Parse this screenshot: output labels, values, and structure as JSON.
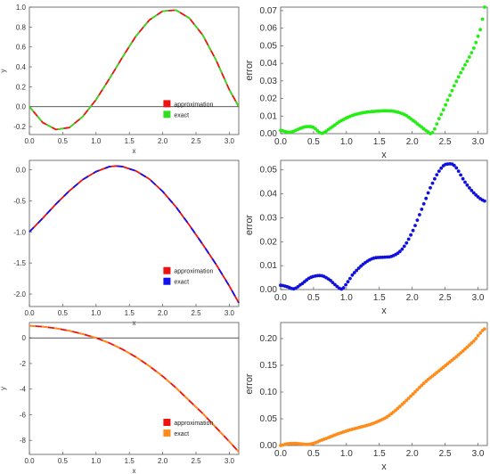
{
  "chart_data": [
    {
      "type": "line",
      "xlabel": "x",
      "ylabel": "y",
      "xlim": [
        0,
        3.14159
      ],
      "ylim": [
        -0.28,
        1.0
      ],
      "xticks": [
        0.0,
        0.5,
        1.0,
        1.5,
        2.0,
        2.5,
        3.0
      ],
      "xtick_labels": [
        "0.0",
        "0.5",
        "1.0",
        "1.5",
        "2.0",
        "2.5",
        "3.0"
      ],
      "yticks": [
        -0.2,
        0.0,
        0.2,
        0.4,
        0.6,
        0.8,
        1.0
      ],
      "ytick_labels": [
        "-0.2",
        "0.0",
        "0.2",
        "0.4",
        "0.6",
        "0.8",
        "1.0"
      ],
      "zero_line": true,
      "legend_position": "lower-right",
      "series": [
        {
          "name": "approximation",
          "color": "#ee1111",
          "style": "solid",
          "x": [
            0,
            0.2,
            0.4,
            0.6,
            0.8,
            1.0,
            1.2,
            1.4,
            1.6,
            1.8,
            2.0,
            2.2,
            2.4,
            2.6,
            2.8,
            3.0,
            3.14159
          ],
          "y": [
            0,
            -0.16,
            -0.23,
            -0.21,
            -0.1,
            0.07,
            0.28,
            0.5,
            0.71,
            0.87,
            0.96,
            0.97,
            0.89,
            0.72,
            0.47,
            0.17,
            0.0
          ]
        },
        {
          "name": "exact",
          "color": "#33dd22",
          "style": "dashed",
          "x": [
            0,
            0.2,
            0.4,
            0.6,
            0.8,
            1.0,
            1.2,
            1.4,
            1.6,
            1.8,
            2.0,
            2.2,
            2.4,
            2.6,
            2.8,
            3.0,
            3.14159
          ],
          "y": [
            0,
            -0.16,
            -0.23,
            -0.21,
            -0.1,
            0.07,
            0.28,
            0.5,
            0.71,
            0.87,
            0.96,
            0.97,
            0.89,
            0.72,
            0.47,
            0.17,
            0.0
          ]
        }
      ]
    },
    {
      "type": "scatter",
      "xlabel": "x",
      "ylabel": "error",
      "xlim": [
        0,
        3.14159
      ],
      "ylim": [
        0,
        0.072
      ],
      "xticks": [
        0.0,
        0.5,
        1.0,
        1.5,
        2.0,
        2.5,
        3.0
      ],
      "xtick_labels": [
        "0.0",
        "0.5",
        "1.0",
        "1.5",
        "2.0",
        "2.5",
        "3.0"
      ],
      "yticks": [
        0.0,
        0.01,
        0.02,
        0.03,
        0.04,
        0.05,
        0.06,
        0.07
      ],
      "ytick_labels": [
        "0.00",
        "0.01",
        "0.02",
        "0.03",
        "0.04",
        "0.05",
        "0.06",
        "0.07"
      ],
      "color": "#22ee11",
      "curve": {
        "x": [
          0.0,
          0.15,
          0.3,
          0.4,
          0.5,
          0.62,
          0.75,
          0.9,
          1.1,
          1.3,
          1.5,
          1.6,
          1.75,
          1.9,
          2.05,
          2.15,
          2.25,
          2.3,
          2.4,
          2.55,
          2.7,
          2.85,
          2.95,
          3.05,
          3.1
        ],
        "y": [
          0.0018,
          0.0008,
          0.003,
          0.004,
          0.0035,
          0.0002,
          0.003,
          0.007,
          0.0105,
          0.0122,
          0.0128,
          0.013,
          0.0125,
          0.0105,
          0.0065,
          0.0035,
          0.0008,
          0.0002,
          0.008,
          0.02,
          0.032,
          0.042,
          0.05,
          0.061,
          0.072
        ]
      }
    },
    {
      "type": "line",
      "xlabel": "x",
      "ylabel": "",
      "xlim": [
        0,
        3.14159
      ],
      "ylim": [
        -2.2,
        0.15
      ],
      "xticks": [
        0.0,
        0.5,
        1.0,
        1.5,
        2.0,
        2.5,
        3.0
      ],
      "xtick_labels": [
        "0.0",
        "0.5",
        "1.0",
        "1.5",
        "2.0",
        "2.5",
        "3.0"
      ],
      "yticks": [
        -2.0,
        -1.5,
        -1.0,
        -0.5,
        0.0
      ],
      "ytick_labels": [
        "-2.0",
        "-1.5",
        "-1.0",
        "-0.5",
        "0.0"
      ],
      "zero_line": false,
      "legend_position": "lower-right",
      "series": [
        {
          "name": "approximation",
          "color": "#ee1111",
          "style": "solid",
          "x": [
            0,
            0.2,
            0.4,
            0.6,
            0.8,
            1.0,
            1.2,
            1.3,
            1.4,
            1.6,
            1.8,
            2.0,
            2.2,
            2.4,
            2.6,
            2.8,
            3.0,
            3.14159
          ],
          "y": [
            -1.0,
            -0.78,
            -0.55,
            -0.34,
            -0.16,
            -0.03,
            0.05,
            0.06,
            0.05,
            -0.02,
            -0.15,
            -0.35,
            -0.6,
            -0.89,
            -1.2,
            -1.52,
            -1.87,
            -2.14
          ]
        },
        {
          "name": "exact",
          "color": "#1111ee",
          "style": "dashed",
          "x": [
            0,
            0.2,
            0.4,
            0.6,
            0.8,
            1.0,
            1.2,
            1.3,
            1.4,
            1.6,
            1.8,
            2.0,
            2.2,
            2.4,
            2.6,
            2.8,
            3.0,
            3.14159
          ],
          "y": [
            -1.0,
            -0.78,
            -0.55,
            -0.34,
            -0.16,
            -0.03,
            0.05,
            0.06,
            0.05,
            -0.02,
            -0.15,
            -0.35,
            -0.6,
            -0.89,
            -1.2,
            -1.52,
            -1.87,
            -2.14
          ]
        }
      ]
    },
    {
      "type": "scatter",
      "xlabel": "x",
      "ylabel": "error",
      "xlim": [
        0,
        3.14159
      ],
      "ylim": [
        0,
        0.054
      ],
      "xticks": [
        0.0,
        0.5,
        1.0,
        1.5,
        2.0,
        2.5,
        3.0
      ],
      "xtick_labels": [
        "0.0",
        "0.5",
        "1.0",
        "1.5",
        "2.0",
        "2.5",
        "3.0"
      ],
      "yticks": [
        0.0,
        0.01,
        0.02,
        0.03,
        0.04,
        0.05
      ],
      "ytick_labels": [
        "0.00",
        "0.01",
        "0.02",
        "0.03",
        "0.04",
        "0.05"
      ],
      "color": "#1111dd",
      "curve": {
        "x": [
          0.0,
          0.1,
          0.2,
          0.3,
          0.45,
          0.62,
          0.75,
          0.85,
          0.93,
          1.0,
          1.1,
          1.25,
          1.4,
          1.55,
          1.7,
          1.85,
          2.0,
          2.15,
          2.3,
          2.45,
          2.55,
          2.65,
          2.8,
          2.95,
          3.1
        ],
        "y": [
          0.0018,
          0.0012,
          0.0003,
          0.002,
          0.005,
          0.0058,
          0.004,
          0.0015,
          0.0002,
          0.0025,
          0.0065,
          0.0105,
          0.013,
          0.0135,
          0.014,
          0.017,
          0.024,
          0.034,
          0.044,
          0.051,
          0.0525,
          0.0515,
          0.045,
          0.04,
          0.037
        ]
      }
    },
    {
      "type": "line",
      "xlabel": "x",
      "ylabel": "y",
      "xlim": [
        0,
        3.14159
      ],
      "ylim": [
        -9.1,
        1.2
      ],
      "xticks": [
        0.0,
        0.5,
        1.0,
        1.5,
        2.0,
        2.5,
        3.0
      ],
      "xtick_labels": [
        "0.0",
        "0.5",
        "1.0",
        "1.5",
        "2.0",
        "2.5",
        "3.0"
      ],
      "yticks": [
        -8,
        -6,
        -4,
        -2,
        0
      ],
      "ytick_labels": [
        "-8",
        "-6",
        "-4",
        "-2",
        "0"
      ],
      "zero_line": true,
      "legend_position": "lower-right",
      "series": [
        {
          "name": "approximation",
          "color": "#ee1111",
          "style": "solid",
          "x": [
            0,
            0.2,
            0.4,
            0.6,
            0.8,
            1.0,
            1.2,
            1.4,
            1.6,
            1.8,
            2.0,
            2.2,
            2.4,
            2.6,
            2.8,
            3.0,
            3.14159
          ],
          "y": [
            0.95,
            0.88,
            0.75,
            0.55,
            0.3,
            0.0,
            -0.4,
            -0.9,
            -1.5,
            -2.2,
            -3.0,
            -3.9,
            -4.9,
            -5.9,
            -7.0,
            -8.1,
            -8.9
          ]
        },
        {
          "name": "exact",
          "color": "#ff8c1a",
          "style": "dashed",
          "x": [
            0,
            0.2,
            0.4,
            0.6,
            0.8,
            1.0,
            1.2,
            1.4,
            1.6,
            1.8,
            2.0,
            2.2,
            2.4,
            2.6,
            2.8,
            3.0,
            3.14159
          ],
          "y": [
            0.95,
            0.88,
            0.75,
            0.55,
            0.3,
            0.0,
            -0.4,
            -0.9,
            -1.5,
            -2.2,
            -3.0,
            -3.9,
            -4.9,
            -5.9,
            -7.0,
            -8.1,
            -8.9
          ]
        }
      ]
    },
    {
      "type": "scatter",
      "xlabel": "x",
      "ylabel": "error",
      "xlim": [
        0,
        3.14159
      ],
      "ylim": [
        0,
        0.23
      ],
      "xticks": [
        0.0,
        0.5,
        1.0,
        1.5,
        2.0,
        2.5,
        3.0
      ],
      "xtick_labels": [
        "0.0",
        "0.5",
        "1.0",
        "1.5",
        "2.0",
        "2.5",
        "3.0"
      ],
      "yticks": [
        0.0,
        0.05,
        0.1,
        0.15,
        0.2
      ],
      "ytick_labels": [
        "0.00",
        "0.05",
        "0.10",
        "0.15",
        "0.20"
      ],
      "color": "#ff8c1a",
      "curve": {
        "x": [
          0.0,
          0.1,
          0.2,
          0.3,
          0.4,
          0.5,
          0.6,
          0.75,
          0.9,
          1.05,
          1.2,
          1.4,
          1.6,
          1.75,
          1.9,
          2.05,
          2.2,
          2.35,
          2.5,
          2.65,
          2.8,
          2.95,
          3.05,
          3.1
        ],
        "y": [
          0.0,
          0.003,
          0.004,
          0.003,
          0.002,
          0.004,
          0.009,
          0.016,
          0.023,
          0.029,
          0.034,
          0.041,
          0.052,
          0.066,
          0.083,
          0.101,
          0.119,
          0.134,
          0.149,
          0.164,
          0.18,
          0.197,
          0.212,
          0.218
        ]
      }
    }
  ]
}
